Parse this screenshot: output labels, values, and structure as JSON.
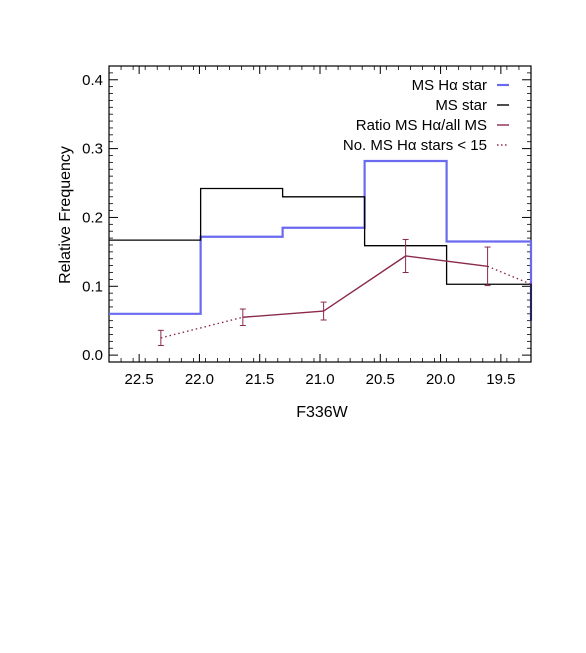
{
  "chart_data": {
    "type": "line",
    "xlabel": "F336W",
    "ylabel": "Relative Frequency",
    "xlim": [
      22.75,
      19.25
    ],
    "ylim": [
      -0.01,
      0.42
    ],
    "x_ticks": [
      "22.5",
      "22.0",
      "21.5",
      "21.0",
      "20.5",
      "20.0",
      "19.5"
    ],
    "y_ticks": [
      "0.0",
      "0.1",
      "0.2",
      "0.3",
      "0.4"
    ],
    "grid": false,
    "legend_position": "top-right",
    "legend": [
      {
        "label": "MS Hα star",
        "color": "#6a6af0",
        "style": "solid"
      },
      {
        "label": "MS star",
        "color": "#000000",
        "style": "solid"
      },
      {
        "label": "Ratio MS Hα/all MS",
        "color": "#8b2a4f",
        "style": "solid"
      },
      {
        "label": "No. MS Hα stars < 15",
        "color": "#8b2a4f",
        "style": "dotted"
      }
    ],
    "histograms": [
      {
        "name": "MS Hα star",
        "color": "#6a6af0",
        "bin_edges": [
          22.75,
          21.99,
          21.31,
          20.63,
          19.95,
          19.25
        ],
        "values": [
          0.06,
          0.172,
          0.185,
          0.282,
          0.165
        ]
      },
      {
        "name": "MS star",
        "color": "#000000",
        "bin_edges": [
          22.75,
          21.99,
          21.31,
          20.63,
          19.95,
          19.25
        ],
        "values": [
          0.167,
          0.242,
          0.23,
          0.159,
          0.103
        ]
      }
    ],
    "ratio_series": {
      "name": "Ratio MS Hα/all MS",
      "color": "#8b2a4f",
      "x": [
        22.32,
        21.64,
        20.97,
        20.29,
        19.61,
        19.25
      ],
      "y": [
        0.025,
        0.055,
        0.064,
        0.144,
        0.129,
        0.103
      ],
      "err": [
        0.011,
        0.012,
        0.013,
        0.024,
        0.028,
        0
      ],
      "dotted_segments": [
        0,
        4
      ]
    }
  }
}
